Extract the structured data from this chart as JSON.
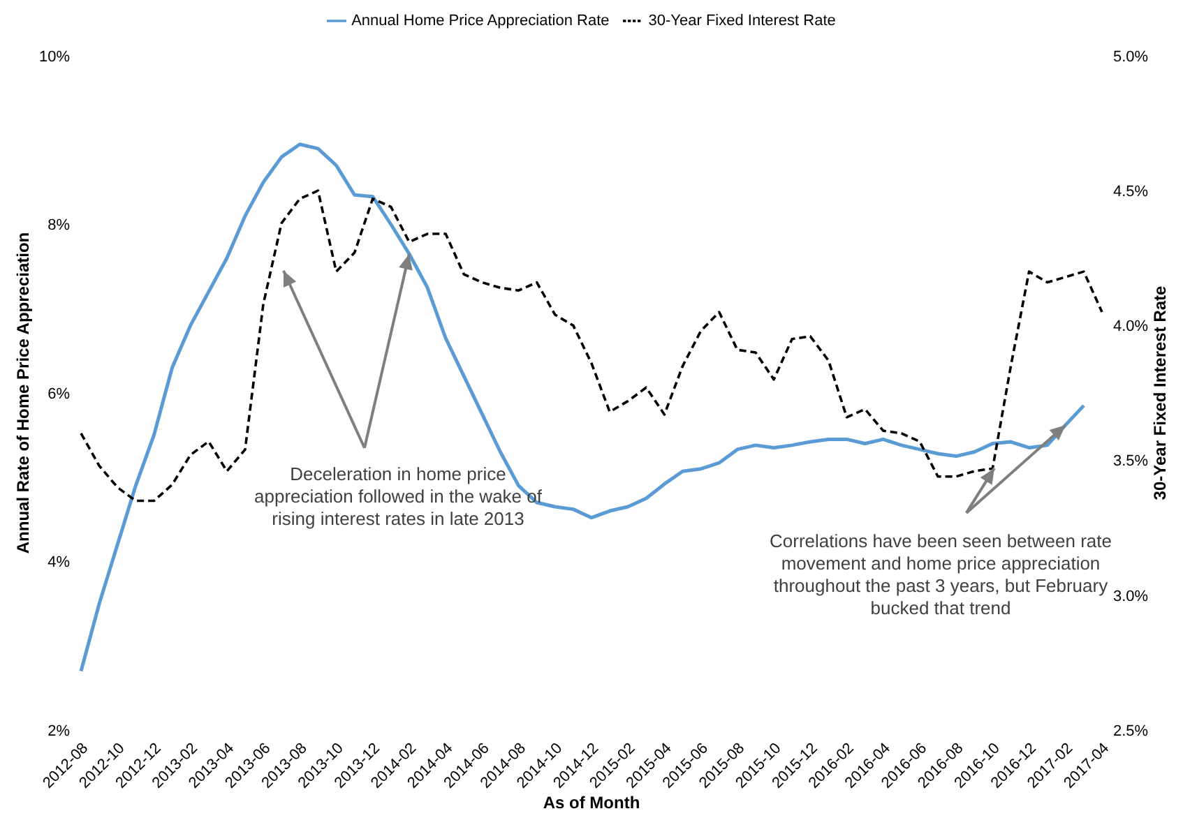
{
  "chart_data": {
    "type": "line",
    "xlabel": "As of Month",
    "ylabel": "Annual Rate of Home Price Appreciation",
    "y2label": "30-Year Fixed Interest Rate",
    "categories": [
      "2012-08",
      null,
      "2012-10",
      null,
      "2012-12",
      null,
      "2013-02",
      null,
      "2013-04",
      null,
      "2013-06",
      null,
      "2013-08",
      null,
      "2013-10",
      null,
      "2013-12",
      null,
      "2014-02",
      null,
      "2014-04",
      null,
      "2014-06",
      null,
      "2014-08",
      null,
      "2014-10",
      null,
      "2014-12",
      null,
      "2015-02",
      null,
      "2015-04",
      null,
      "2015-06",
      null,
      "2015-08",
      null,
      "2015-10",
      null,
      "2015-12",
      null,
      "2016-02",
      null,
      "2016-04",
      null,
      "2016-06",
      null,
      "2016-08",
      null,
      "2016-10",
      null,
      "2016-12",
      null,
      "2017-02",
      null,
      "2017-04"
    ],
    "series": [
      {
        "name": "Annual Home Price Appreciation Rate",
        "color": "#5b9bd5",
        "line_style": "solid",
        "values": [
          2.7,
          3.5,
          4.2,
          4.9,
          5.5,
          6.3,
          6.8,
          7.2,
          7.6,
          8.1,
          8.5,
          8.8,
          8.95,
          8.9,
          8.7,
          8.35,
          8.33,
          8.0,
          7.65,
          7.25,
          6.65,
          6.2,
          5.75,
          5.3,
          4.9,
          4.7,
          4.65,
          4.62,
          4.52,
          4.6,
          4.65,
          4.75,
          4.92,
          5.07,
          5.1,
          5.17,
          5.33,
          5.38,
          5.35,
          5.38,
          5.42,
          5.45,
          5.45,
          5.4,
          5.45,
          5.38,
          5.33,
          5.28,
          5.25,
          5.3,
          5.4,
          5.42,
          5.35,
          5.38,
          5.62,
          5.85,
          null
        ]
      },
      {
        "name": "30-Year Fixed Interest Rate",
        "color": "#000000",
        "line_style": "dashed",
        "axis": "y2",
        "values": [
          3.6,
          3.48,
          3.4,
          3.35,
          3.35,
          3.41,
          3.52,
          3.57,
          3.46,
          3.54,
          4.08,
          4.38,
          4.47,
          4.5,
          4.2,
          4.27,
          4.47,
          4.44,
          4.31,
          4.34,
          4.34,
          4.19,
          4.16,
          4.14,
          4.13,
          4.16,
          4.04,
          4.0,
          3.86,
          3.68,
          3.72,
          3.77,
          3.67,
          3.85,
          3.98,
          4.05,
          3.91,
          3.9,
          3.8,
          3.95,
          3.96,
          3.87,
          3.66,
          3.69,
          3.61,
          3.6,
          3.57,
          3.44,
          3.44,
          3.46,
          3.47,
          3.85,
          4.2,
          4.16,
          4.18,
          4.2,
          4.05
        ]
      }
    ],
    "ylim": [
      2,
      10
    ],
    "yticks": [
      {
        "value": 2,
        "label": "2%"
      },
      {
        "value": 4,
        "label": "4%"
      },
      {
        "value": 6,
        "label": "6%"
      },
      {
        "value": 8,
        "label": "8%"
      },
      {
        "value": 10,
        "label": "10%"
      }
    ],
    "y2lim": [
      2.5,
      5
    ],
    "y2ticks": [
      {
        "value": 2.5,
        "label": "2.5%"
      },
      {
        "value": 3,
        "label": "3.0%"
      },
      {
        "value": 3.5,
        "label": "3.5%"
      },
      {
        "value": 4,
        "label": "4.0%"
      },
      {
        "value": 4.5,
        "label": "4.5%"
      },
      {
        "value": 5,
        "label": "5.0%"
      }
    ],
    "grid": false,
    "legend": "top",
    "marker": "none",
    "annotations": [
      {
        "text": "Deceleration in home price appreciation followed in the wake of rising interest rates in late 2013",
        "x": "2014-02",
        "y": 7.65
      },
      {
        "text": "Correlations have been seen between rate movement and home price appreciation throughout the past 3 years, but February bucked that trend",
        "x": "2017-02",
        "y": 5.62
      }
    ]
  }
}
